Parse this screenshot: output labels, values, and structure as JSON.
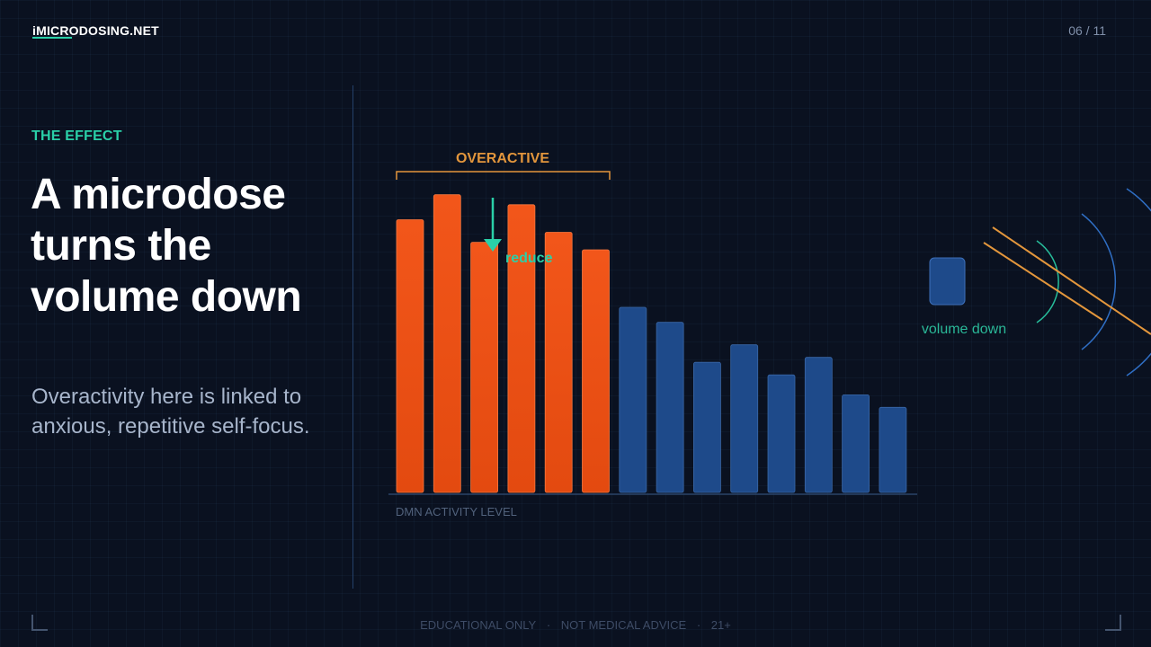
{
  "brand": {
    "name": "iMICRODOSING.NET"
  },
  "page": {
    "indicator": "06 / 11"
  },
  "left": {
    "eyebrow": "THE EFFECT",
    "headline": "A microdose turns the volume down",
    "body": "Overactivity here is linked to anxious, repetitive self-focus."
  },
  "colors": {
    "accent": "#2ad0a8",
    "overactive": "#f0541a",
    "normal": "#1e4a8a",
    "bracket": "#e3963c",
    "background": "#0a1120"
  },
  "chart_data": {
    "type": "bar",
    "xlabel": "DMN ACTIVITY LEVEL",
    "values": [
      10.9,
      11.9,
      10.0,
      11.5,
      10.4,
      9.7,
      7.4,
      6.8,
      5.2,
      5.9,
      4.7,
      5.4,
      3.9,
      3.4
    ],
    "ylim": [
      0,
      12.5
    ],
    "highlighted_count": 6,
    "bracket_label": "OVERACTIVE",
    "annotation": "reduce"
  },
  "illustration": {
    "caption": "volume down"
  },
  "footer": {
    "items": [
      "EDUCATIONAL ONLY",
      "NOT MEDICAL ADVICE",
      "21+"
    ],
    "separator": "·"
  }
}
